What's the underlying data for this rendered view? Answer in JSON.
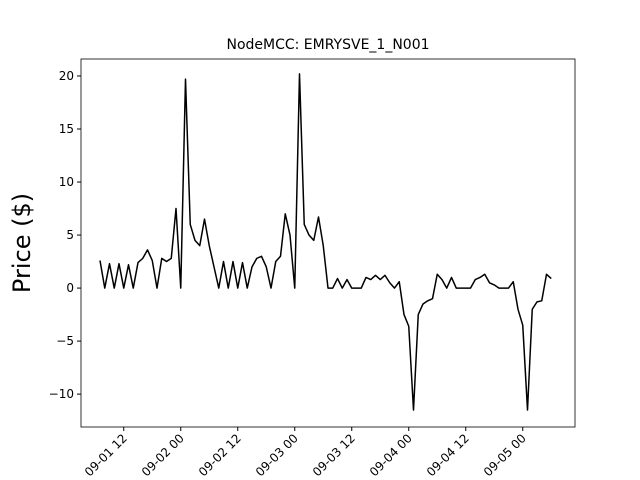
{
  "chart_data": {
    "type": "line",
    "title": "NodeMCC: EMRYSVE_1_N001",
    "y_label": "Price ($)",
    "x": [
      "09-01 07",
      "09-01 08",
      "09-01 09",
      "09-01 10",
      "09-01 11",
      "09-01 12",
      "09-01 13",
      "09-01 14",
      "09-01 15",
      "09-01 16",
      "09-01 17",
      "09-01 18",
      "09-01 19",
      "09-01 20",
      "09-01 21",
      "09-01 22",
      "09-01 23",
      "09-02 00",
      "09-02 01",
      "09-02 02",
      "09-02 03",
      "09-02 04",
      "09-02 05",
      "09-02 06",
      "09-02 07",
      "09-02 08",
      "09-02 09",
      "09-02 10",
      "09-02 11",
      "09-02 12",
      "09-02 13",
      "09-02 14",
      "09-02 15",
      "09-02 16",
      "09-02 17",
      "09-02 18",
      "09-02 19",
      "09-02 20",
      "09-02 21",
      "09-02 22",
      "09-02 23",
      "09-03 00",
      "09-03 01",
      "09-03 02",
      "09-03 03",
      "09-03 04",
      "09-03 05",
      "09-03 06",
      "09-03 07",
      "09-03 08",
      "09-03 09",
      "09-03 10",
      "09-03 11",
      "09-03 12",
      "09-03 13",
      "09-03 14",
      "09-03 15",
      "09-03 16",
      "09-03 17",
      "09-03 18",
      "09-03 19",
      "09-03 20",
      "09-03 21",
      "09-03 22",
      "09-03 23",
      "09-04 00",
      "09-04 01",
      "09-04 02",
      "09-04 03",
      "09-04 04",
      "09-04 05",
      "09-04 06",
      "09-04 07",
      "09-04 08",
      "09-04 09",
      "09-04 10",
      "09-04 11",
      "09-04 12",
      "09-04 13",
      "09-04 14",
      "09-04 15",
      "09-04 16",
      "09-04 17",
      "09-04 18",
      "09-04 19",
      "09-04 20",
      "09-04 21",
      "09-04 22",
      "09-04 23",
      "09-05 00",
      "09-05 01",
      "09-05 02",
      "09-05 03",
      "09-05 04",
      "09-05 05",
      "09-05 06"
    ],
    "series": [
      {
        "color": "#000000",
        "values": [
          2.6,
          0,
          2.3,
          0,
          2.3,
          0,
          2.2,
          0,
          2.4,
          2.8,
          3.6,
          2.6,
          0,
          2.8,
          2.5,
          2.8,
          7.5,
          0,
          19.7,
          6,
          4.5,
          4,
          6.5,
          4,
          2,
          0,
          2.5,
          0,
          2.5,
          0,
          2.4,
          0,
          2,
          2.8,
          3,
          2,
          0,
          2.5,
          3,
          7,
          5,
          0,
          20.2,
          6,
          5,
          4.5,
          6.7,
          4,
          0,
          0,
          0.9,
          0,
          0.8,
          0,
          0,
          0,
          1,
          0.8,
          1.2,
          0.8,
          1.2,
          0.5,
          0,
          0.6,
          -2.5,
          -3.6,
          -11.5,
          -2.5,
          -1.5,
          -1.2,
          -1,
          1.3,
          0.8,
          0,
          1,
          0,
          0,
          0,
          0,
          0.8,
          1,
          1.3,
          0.5,
          0.3,
          0,
          0,
          0,
          0.6,
          -2,
          -3.5,
          -11.5,
          -2,
          -1.3,
          -1.2,
          1.3,
          0.9
        ]
      }
    ],
    "xlim": [
      "09-01 03",
      "09-05 11"
    ],
    "xticks": [
      "09-01 12",
      "09-02 00",
      "09-02 12",
      "09-03 00",
      "09-03 12",
      "09-04 00",
      "09-04 12",
      "09-05 00"
    ],
    "ylim": [
      -13.1,
      21.6
    ],
    "yticks": [
      {
        "value": -10,
        "label": "−10"
      },
      {
        "value": -5,
        "label": "−5"
      },
      0,
      5,
      10,
      15,
      20
    ]
  }
}
